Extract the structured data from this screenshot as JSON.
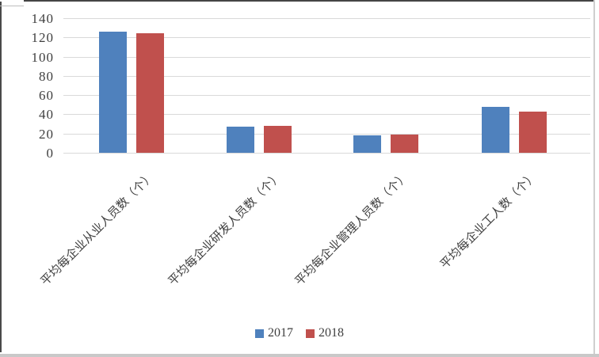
{
  "chart_data": {
    "type": "bar",
    "title": "",
    "xlabel": "",
    "ylabel": "",
    "categories": [
      "平均每企业从业人员数（个）",
      "平均每企业研发人员数（个）",
      "平均每企业管理人员数（个）",
      "平均每企业工人数（个）"
    ],
    "series": [
      {
        "name": "2017",
        "color": "#4F81BD",
        "values": [
          126,
          27,
          18,
          48
        ]
      },
      {
        "name": "2018",
        "color": "#C0504D",
        "values": [
          124,
          28,
          19,
          43
        ]
      }
    ],
    "ylim": [
      0,
      140
    ],
    "ytick_interval": 20,
    "ytick_labels": [
      "140",
      "120",
      "100",
      "80",
      "60",
      "40",
      "20",
      "0"
    ],
    "grid": true,
    "legend_position": "bottom",
    "category_label_rotation_deg": 45
  },
  "colors": {
    "series_2017": "#4F81BD",
    "series_2018": "#C0504D",
    "gridline": "#d9d9d9",
    "text": "#3f3f3f",
    "background": "#ffffff"
  }
}
